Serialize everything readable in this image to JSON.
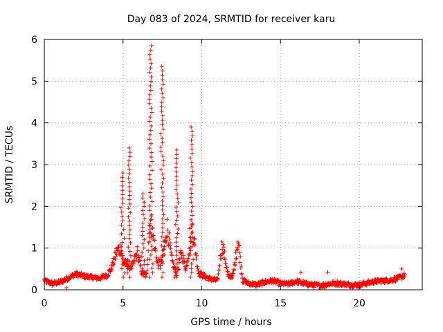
{
  "chart_data": {
    "type": "scatter",
    "title": "Day 083 of 2024, SRMTID for receiver karu",
    "xlabel": "GPS time / hours",
    "ylabel": "SRMTID / TECUs",
    "xlim": [
      0,
      24
    ],
    "ylim": [
      0,
      6
    ],
    "x_ticks": [
      "0",
      "5",
      "10",
      "15",
      "20"
    ],
    "y_ticks": [
      "0",
      "1",
      "2",
      "3",
      "4",
      "5",
      "6"
    ],
    "grid": true,
    "marker": "plus",
    "color": "#ff0000",
    "series": [
      {
        "name": "SRMTID",
        "profile": {
          "x": [
            0,
            0.5,
            1,
            1.5,
            2,
            2.5,
            3,
            3.5,
            4,
            4.3,
            4.6,
            4.85,
            5.0,
            5.3,
            5.6,
            5.9,
            6.2,
            6.5,
            6.7,
            6.9,
            7.2,
            7.5,
            7.8,
            8.1,
            8.4,
            8.7,
            9.0,
            9.4,
            9.8,
            10.2,
            10.6,
            11.0,
            11.3,
            11.7,
            12.0,
            12.3,
            12.6,
            13.0,
            13.5,
            14.0,
            14.5,
            15.0,
            15.5,
            16.0,
            16.5,
            17.0,
            17.5,
            18.0,
            18.5,
            19.0,
            19.5,
            20.0,
            20.5,
            21.0,
            21.5,
            22.0,
            22.5,
            22.9
          ],
          "y": [
            0.22,
            0.15,
            0.18,
            0.28,
            0.38,
            0.33,
            0.3,
            0.28,
            0.35,
            0.55,
            0.92,
            1.0,
            0.65,
            0.6,
            0.55,
            0.9,
            0.4,
            0.35,
            1.7,
            1.3,
            0.6,
            0.7,
            1.5,
            0.7,
            0.35,
            0.9,
            0.5,
            1.5,
            0.4,
            0.32,
            0.25,
            0.22,
            1.1,
            0.3,
            0.35,
            1.2,
            0.22,
            0.15,
            0.12,
            0.18,
            0.22,
            0.15,
            0.14,
            0.2,
            0.15,
            0.12,
            0.1,
            0.14,
            0.16,
            0.14,
            0.12,
            0.12,
            0.16,
            0.2,
            0.22,
            0.23,
            0.28,
            0.35
          ]
        },
        "spikes": [
          {
            "x": 4.95,
            "ymax": 2.8
          },
          {
            "x": 5.4,
            "ymax": 3.4
          },
          {
            "x": 6.3,
            "ymax": 2.3
          },
          {
            "x": 6.75,
            "ymax": 5.85
          },
          {
            "x": 7.5,
            "ymax": 5.35
          },
          {
            "x": 8.4,
            "ymax": 3.35
          },
          {
            "x": 9.35,
            "ymax": 3.9
          }
        ],
        "isolated_points": [
          {
            "x": 1.4,
            "y": 0.05
          },
          {
            "x": 16.3,
            "y": 0.42
          },
          {
            "x": 17.8,
            "y": 0.05
          },
          {
            "x": 18.0,
            "y": 0.42
          },
          {
            "x": 22.7,
            "y": 0.5
          }
        ]
      }
    ]
  }
}
